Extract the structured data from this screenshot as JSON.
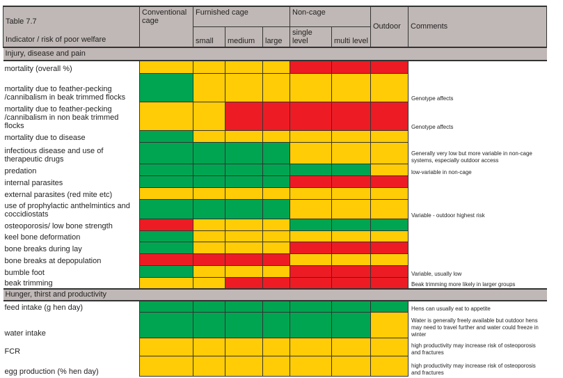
{
  "header": {
    "table_label": "Table 7.7",
    "indicator_label": "Indicator / risk of poor welfare",
    "conventional": "Conventional cage",
    "furnished": "Furnished cage",
    "small": "small",
    "medium": "medium",
    "large": "large",
    "noncage": "Non-cage",
    "single": "single level",
    "multi": "multi level",
    "outdoor": "Outdoor",
    "comments": "Comments"
  },
  "colors": {
    "G": "#00a551",
    "Y": "#ffcc05",
    "R": "#ed1c24",
    "header_bg": "#c0b8b6"
  },
  "sections": [
    {
      "title": "Injury, disease and pain",
      "rows": [
        {
          "label": "mortality (overall %)",
          "risk": [
            "Y",
            "Y",
            "Y",
            "Y",
            "R",
            "R",
            "R"
          ],
          "comment": ""
        },
        {
          "label": "mortality due to feather-pecking /cannibalism in beak trimmed flocks",
          "risk": [
            "G",
            "Y",
            "Y",
            "Y",
            "Y",
            "Y",
            "Y"
          ],
          "comment": "Genotype affects"
        },
        {
          "label": "mortality due to feather-pecking /cannibalism in non beak trimmed flocks",
          "risk": [
            "Y",
            "Y",
            "R",
            "R",
            "R",
            "R",
            "R"
          ],
          "comment": "Genotype affects"
        },
        {
          "label": "mortality due to disease",
          "risk": [
            "G",
            "Y",
            "Y",
            "Y",
            "Y",
            "Y",
            "Y"
          ],
          "comment": ""
        },
        {
          "label": "infectious disease and use of therapeutic drugs",
          "risk": [
            "G",
            "G",
            "G",
            "G",
            "Y",
            "Y",
            "Y"
          ],
          "comment": "Generally very low but more variable in non-cage systems, especially outdoor access"
        },
        {
          "label": "predation",
          "risk": [
            "G",
            "G",
            "G",
            "G",
            "G",
            "G",
            "Y"
          ],
          "comment": "low-variable in non-cage"
        },
        {
          "label": "internal parasites",
          "risk": [
            "G",
            "G",
            "G",
            "G",
            "R",
            "R",
            "R"
          ],
          "comment": ""
        },
        {
          "label": "external parasites (red mite etc)",
          "risk": [
            "Y",
            "Y",
            "Y",
            "Y",
            "Y",
            "Y",
            "Y"
          ],
          "comment": ""
        },
        {
          "label": "use of prophylactic anthelmintics and coccidiostats",
          "risk": [
            "G",
            "G",
            "G",
            "G",
            "Y",
            "Y",
            "Y"
          ],
          "comment": "Variable - outdoor highest risk"
        },
        {
          "label": "osteoporosis/ low bone strength",
          "risk": [
            "R",
            "Y",
            "Y",
            "Y",
            "G",
            "G",
            "G"
          ],
          "comment": ""
        },
        {
          "label": "keel bone deformation",
          "risk": [
            "G",
            "Y",
            "Y",
            "Y",
            "Y",
            "Y",
            "Y"
          ],
          "comment": ""
        },
        {
          "label": "bone breaks during lay",
          "risk": [
            "G",
            "Y",
            "Y",
            "Y",
            "R",
            "R",
            "R"
          ],
          "comment": ""
        },
        {
          "label": "bone breaks at depopulation",
          "risk": [
            "R",
            "R",
            "R",
            "R",
            "Y",
            "Y",
            "Y"
          ],
          "comment": ""
        },
        {
          "label": "bumble foot",
          "risk": [
            "G",
            "Y",
            "Y",
            "Y",
            "R",
            "R",
            "R"
          ],
          "comment": "Variable, usually low"
        },
        {
          "label": "beak trimming",
          "risk": [
            "Y",
            "Y",
            "R",
            "R",
            "R",
            "R",
            "R"
          ],
          "comment": "Beak trimming more likely in larger groups"
        }
      ]
    },
    {
      "title": "Hunger, thirst and productivity",
      "rows": [
        {
          "label": "feed intake (g hen day)",
          "risk": [
            "G",
            "G",
            "G",
            "G",
            "G",
            "G",
            "G"
          ],
          "comment": "Hens can usually eat to appetite"
        },
        {
          "label": "water intake",
          "risk": [
            "G",
            "G",
            "G",
            "G",
            "G",
            "G",
            "Y"
          ],
          "comment": "Water is generally freely available but outdoor hens may need to travel further and water could freeze in winter"
        },
        {
          "label": "FCR",
          "risk": [
            "Y",
            "Y",
            "Y",
            "Y",
            "Y",
            "Y",
            "Y"
          ],
          "comment": "high productivity may increase risk of osteoporosis and fractures"
        },
        {
          "label": "egg production (% hen day)",
          "risk": [
            "Y",
            "Y",
            "Y",
            "Y",
            "Y",
            "Y",
            "Y"
          ],
          "comment": "high productivity may increase risk of osteoporosis and fractures"
        }
      ]
    }
  ]
}
